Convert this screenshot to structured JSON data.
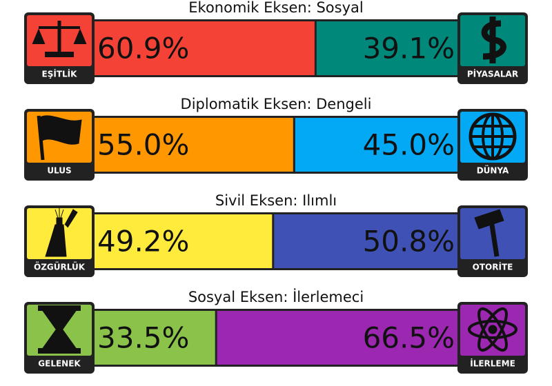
{
  "axes": [
    {
      "title": "Ekonomik Eksen: Sosyal",
      "left": {
        "label": "EŞİTLİK",
        "value": 60.9,
        "value_label": "60.9%",
        "color": "#f44336"
      },
      "right": {
        "label": "PİYASALAR",
        "value": 39.1,
        "value_label": "39.1%",
        "color": "#00897b"
      }
    },
    {
      "title": "Diplomatik Eksen: Dengeli",
      "left": {
        "label": "ULUS",
        "value": 55.0,
        "value_label": "55.0%",
        "color": "#ff9800"
      },
      "right": {
        "label": "DÜNYA",
        "value": 45.0,
        "value_label": "45.0%",
        "color": "#03a9f4"
      }
    },
    {
      "title": "Sivil Eksen: Ilımlı",
      "left": {
        "label": "ÖZGÜRLÜK",
        "value": 49.2,
        "value_label": "49.2%",
        "color": "#ffeb3b"
      },
      "right": {
        "label": "OTORİTE",
        "value": 50.8,
        "value_label": "50.8%",
        "color": "#3f51b5"
      }
    },
    {
      "title": "Sosyal Eksen: İlerlemeci",
      "left": {
        "label": "GELENEK",
        "value": 33.5,
        "value_label": "33.5%",
        "color": "#8bc34a"
      },
      "right": {
        "label": "İLERLEME",
        "value": 66.5,
        "value_label": "66.5%",
        "color": "#9c27b0"
      }
    }
  ]
}
